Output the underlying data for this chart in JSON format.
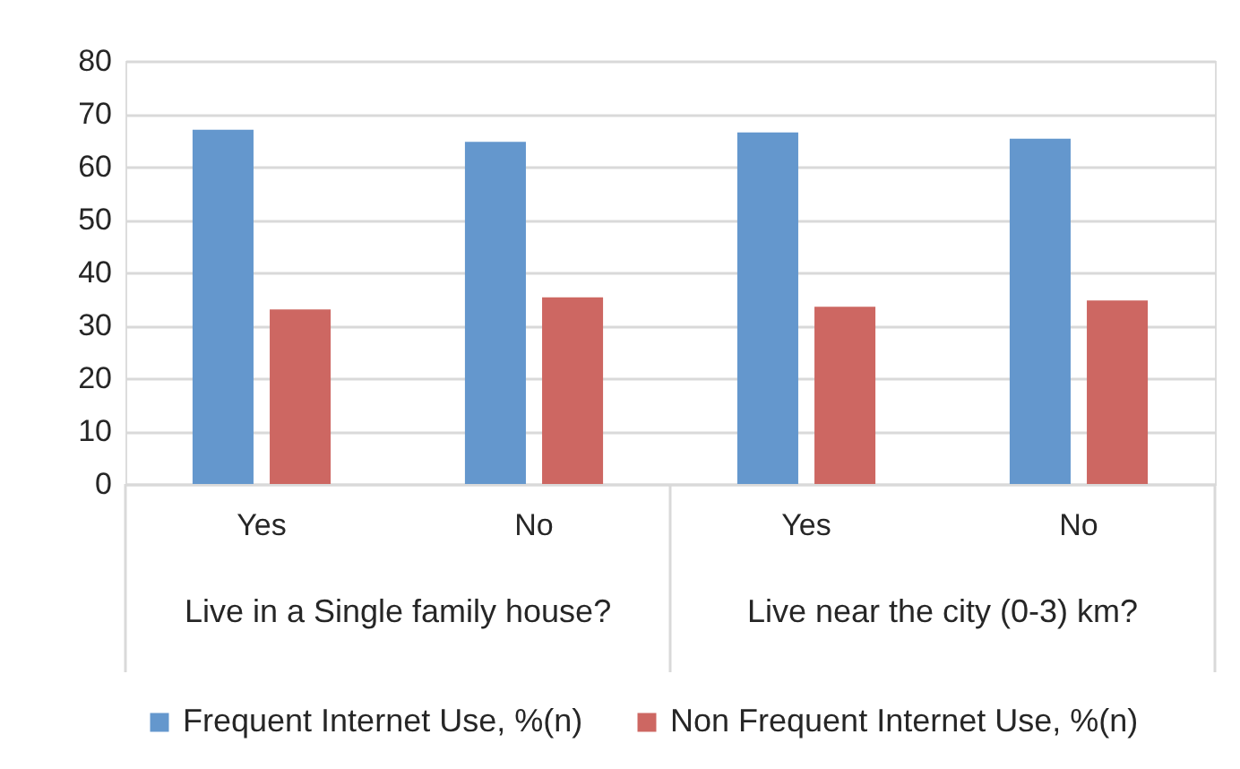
{
  "chart_data": {
    "type": "bar",
    "categories": [
      "Yes",
      "No",
      "Yes",
      "No"
    ],
    "series": [
      {
        "name": "Frequent Internet Use, %(n)",
        "color": "#6497cd",
        "values": [
          67,
          64.7,
          66.5,
          65.3
        ]
      },
      {
        "name": "Non Frequent Internet Use, %(n)",
        "color": "#cd6762",
        "values": [
          33,
          35.3,
          33.5,
          34.7
        ]
      }
    ],
    "ylim": [
      0,
      80
    ],
    "yticks": [
      0,
      10,
      20,
      30,
      40,
      50,
      60,
      70,
      80
    ],
    "grid": "y",
    "legend": "bottom",
    "annotations": [
      "Live in a Single family house?",
      "Live near the city (0-3) km?"
    ]
  }
}
